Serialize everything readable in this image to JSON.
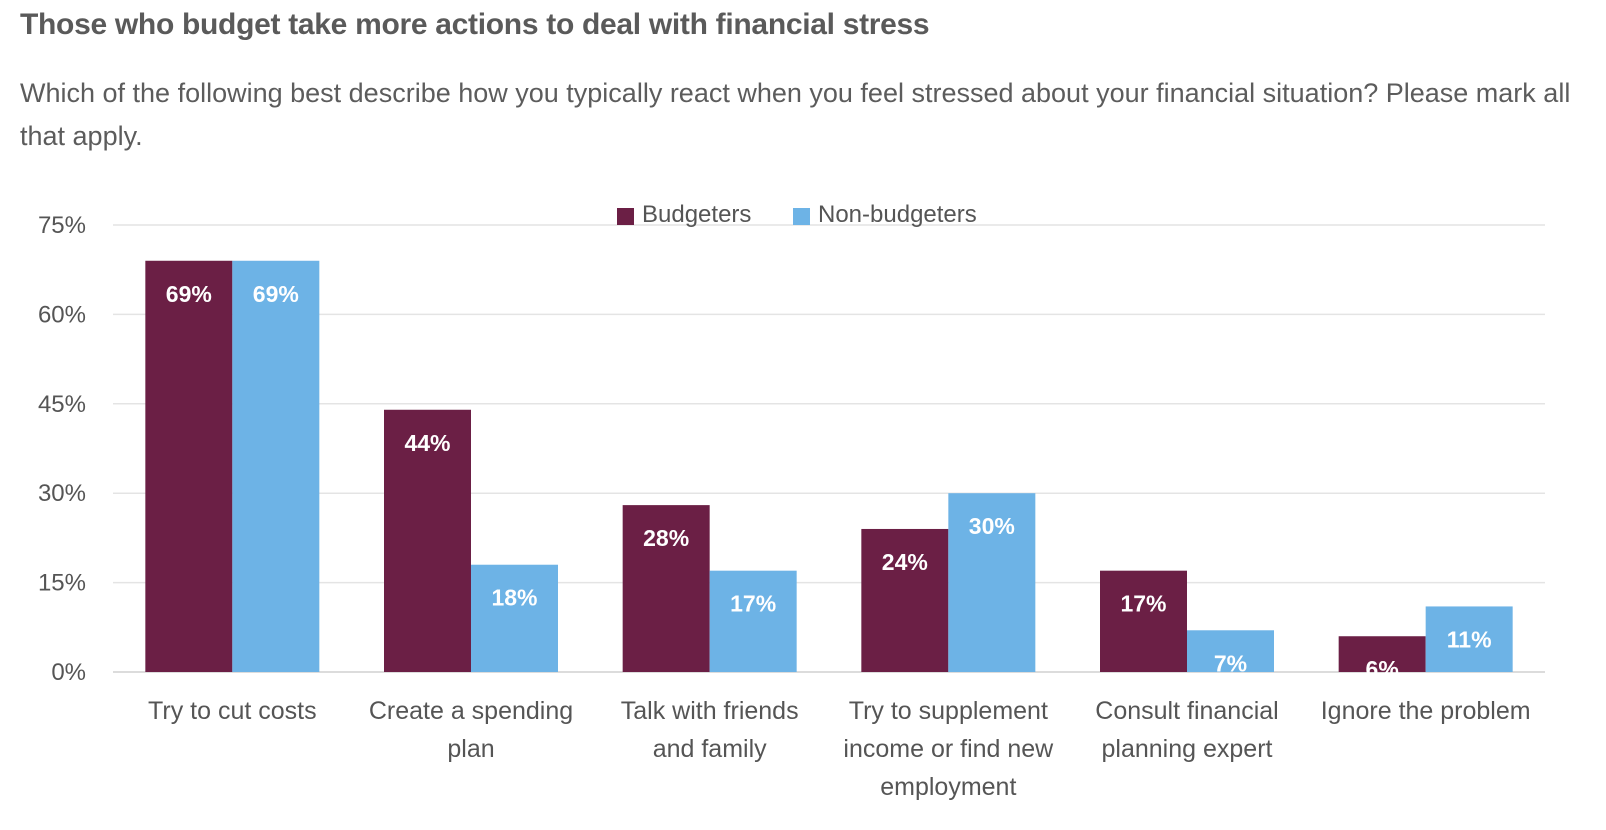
{
  "chart_data": {
    "type": "bar",
    "title": "Those who budget take more actions to deal with financial stress",
    "subtitle": "Which of the following best describe how you typically react when you feel stressed about your financial situation? Please mark all that apply.",
    "categories": [
      [
        "Try to cut costs"
      ],
      [
        "Create a spending",
        "plan"
      ],
      [
        "Talk with friends",
        "and family"
      ],
      [
        "Try to supplement",
        "income or find new",
        "employment"
      ],
      [
        "Consult financial",
        "planning expert"
      ],
      [
        "Ignore the problem"
      ]
    ],
    "series": [
      {
        "name": "Budgeters",
        "color": "#6b1f45",
        "values": [
          69,
          44,
          28,
          24,
          17,
          6
        ],
        "labels": [
          "69%",
          "44%",
          "28%",
          "24%",
          "17%",
          "6%"
        ]
      },
      {
        "name": "Non-budgeters",
        "color": "#6db3e6",
        "values": [
          69,
          18,
          17,
          30,
          7,
          11
        ],
        "labels": [
          "69%",
          "18%",
          "17%",
          "30%",
          "7%",
          "11%"
        ]
      }
    ],
    "ylim": [
      0,
      75
    ],
    "yticks": [
      0,
      15,
      30,
      45,
      60,
      75
    ],
    "ytick_labels": [
      "0%",
      "15%",
      "30%",
      "45%",
      "60%",
      "75%"
    ],
    "legend_position": "top-center",
    "grid": true
  }
}
